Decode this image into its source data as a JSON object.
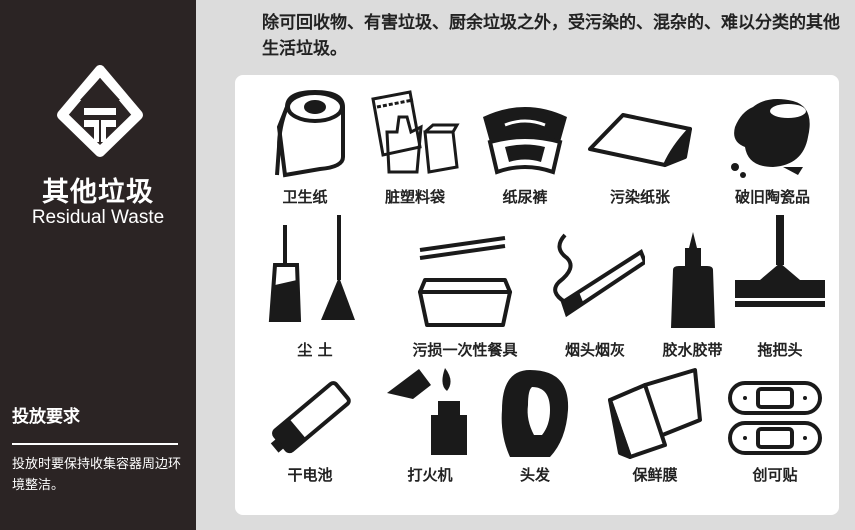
{
  "sidebar": {
    "title_cn": "其他垃圾",
    "title_en": "Residual Waste",
    "requirements_heading": "投放要求",
    "requirements_text": "投放时要保持收集容器周边环境整洁。"
  },
  "description": "除可回收物、有害垃圾、厨余垃圾之外，受污染的、混杂的、难以分类的其他生活垃圾。",
  "items": [
    {
      "label": "卫生纸",
      "icon": "toilet-paper-icon"
    },
    {
      "label": "脏塑料袋",
      "icon": "plastic-bag-icon"
    },
    {
      "label": "纸尿裤",
      "icon": "diaper-icon"
    },
    {
      "label": "污染纸张",
      "icon": "paper-icon"
    },
    {
      "label": "破旧陶瓷品",
      "icon": "broken-ceramic-icon"
    },
    {
      "label": "尘 土",
      "icon": "dustpan-broom-icon"
    },
    {
      "label": "污损一次性餐具",
      "icon": "disposable-tableware-icon"
    },
    {
      "label": "烟头烟灰",
      "icon": "cigarette-icon"
    },
    {
      "label": "胶水胶带",
      "icon": "glue-icon"
    },
    {
      "label": "拖把头",
      "icon": "mop-icon"
    },
    {
      "label": "干电池",
      "icon": "battery-icon"
    },
    {
      "label": "打火机",
      "icon": "lighter-icon"
    },
    {
      "label": "头发",
      "icon": "hair-icon"
    },
    {
      "label": "保鲜膜",
      "icon": "cling-film-icon"
    },
    {
      "label": "创可贴",
      "icon": "bandage-icon"
    }
  ],
  "colors": {
    "sidebar": "#2b2424",
    "background": "#dcdcdc",
    "panel": "#ffffff",
    "icon": "#1a1a1a"
  }
}
